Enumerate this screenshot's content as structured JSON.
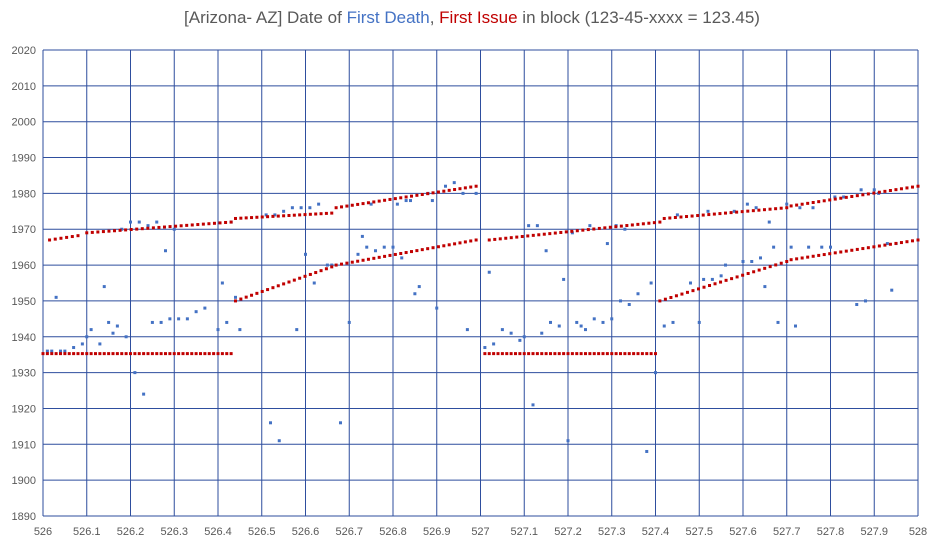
{
  "chart_data": {
    "type": "scatter",
    "title": {
      "part1": "[Arizona- AZ] Date of ",
      "part2": "First Death",
      "part3": ", ",
      "part4": "First Issue",
      "part5": " in block (123-45-xxxx = 123.45)"
    },
    "xlim": [
      526,
      528
    ],
    "ylim": [
      1890,
      2020
    ],
    "x_ticks": [
      "526",
      "526.1",
      "526.2",
      "526.3",
      "526.4",
      "526.5",
      "526.6",
      "526.7",
      "526.8",
      "526.9",
      "527",
      "527.1",
      "527.2",
      "527.3",
      "527.4",
      "527.5",
      "527.6",
      "527.7",
      "527.8",
      "527.9",
      "528"
    ],
    "y_ticks": [
      "1890",
      "1900",
      "1910",
      "1920",
      "1930",
      "1940",
      "1950",
      "1960",
      "1970",
      "1980",
      "1990",
      "2000",
      "2010",
      "2020"
    ],
    "grid": true,
    "legend": "none",
    "colors": {
      "first_death": "#4472C4",
      "first_issue": "#C00000",
      "grid": "#2E4E9E"
    },
    "series": [
      {
        "name": "First Death",
        "points": [
          [
            526.01,
            1936
          ],
          [
            526.02,
            1936
          ],
          [
            526.03,
            1951
          ],
          [
            526.04,
            1936
          ],
          [
            526.05,
            1936
          ],
          [
            526.07,
            1937
          ],
          [
            526.09,
            1938
          ],
          [
            526.1,
            1940
          ],
          [
            526.11,
            1942
          ],
          [
            526.13,
            1938
          ],
          [
            526.14,
            1954
          ],
          [
            526.15,
            1944
          ],
          [
            526.16,
            1941
          ],
          [
            526.17,
            1943
          ],
          [
            526.18,
            1970
          ],
          [
            526.19,
            1940
          ],
          [
            526.2,
            1972
          ],
          [
            526.21,
            1930
          ],
          [
            526.22,
            1972
          ],
          [
            526.23,
            1924
          ],
          [
            526.24,
            1971
          ],
          [
            526.25,
            1944
          ],
          [
            526.26,
            1972
          ],
          [
            526.27,
            1944
          ],
          [
            526.28,
            1964
          ],
          [
            526.29,
            1945
          ],
          [
            526.3,
            1970
          ],
          [
            526.31,
            1945
          ],
          [
            526.33,
            1945
          ],
          [
            526.35,
            1947
          ],
          [
            526.37,
            1948
          ],
          [
            526.4,
            1942
          ],
          [
            526.41,
            1955
          ],
          [
            526.42,
            1944
          ],
          [
            526.43,
            1972
          ],
          [
            526.44,
            1951
          ],
          [
            526.45,
            1942
          ],
          [
            526.51,
            1974
          ],
          [
            526.52,
            1916
          ],
          [
            526.53,
            1974
          ],
          [
            526.54,
            1911
          ],
          [
            526.55,
            1975
          ],
          [
            526.57,
            1976
          ],
          [
            526.58,
            1942
          ],
          [
            526.59,
            1976
          ],
          [
            526.6,
            1963
          ],
          [
            526.61,
            1976
          ],
          [
            526.62,
            1955
          ],
          [
            526.63,
            1977
          ],
          [
            526.65,
            1960
          ],
          [
            526.66,
            1960
          ],
          [
            526.68,
            1916
          ],
          [
            526.7,
            1944
          ],
          [
            526.72,
            1963
          ],
          [
            526.73,
            1968
          ],
          [
            526.74,
            1965
          ],
          [
            526.75,
            1977
          ],
          [
            526.76,
            1964
          ],
          [
            526.78,
            1965
          ],
          [
            526.8,
            1965
          ],
          [
            526.81,
            1977
          ],
          [
            526.82,
            1962
          ],
          [
            526.83,
            1978
          ],
          [
            526.84,
            1978
          ],
          [
            526.85,
            1952
          ],
          [
            526.86,
            1954
          ],
          [
            526.88,
            1980
          ],
          [
            526.89,
            1978
          ],
          [
            526.9,
            1948
          ],
          [
            526.92,
            1982
          ],
          [
            526.94,
            1983
          ],
          [
            526.96,
            1980
          ],
          [
            526.97,
            1942
          ],
          [
            526.99,
            1980
          ],
          [
            527.01,
            1937
          ],
          [
            527.02,
            1958
          ],
          [
            527.03,
            1938
          ],
          [
            527.05,
            1942
          ],
          [
            527.07,
            1941
          ],
          [
            527.09,
            1939
          ],
          [
            527.1,
            1940
          ],
          [
            527.11,
            1971
          ],
          [
            527.12,
            1921
          ],
          [
            527.13,
            1971
          ],
          [
            527.14,
            1941
          ],
          [
            527.15,
            1964
          ],
          [
            527.16,
            1944
          ],
          [
            527.18,
            1943
          ],
          [
            527.19,
            1956
          ],
          [
            527.2,
            1911
          ],
          [
            527.21,
            1969
          ],
          [
            527.22,
            1944
          ],
          [
            527.23,
            1943
          ],
          [
            527.24,
            1942
          ],
          [
            527.25,
            1971
          ],
          [
            527.26,
            1945
          ],
          [
            527.28,
            1944
          ],
          [
            527.29,
            1966
          ],
          [
            527.3,
            1945
          ],
          [
            527.31,
            1971
          ],
          [
            527.32,
            1950
          ],
          [
            527.33,
            1970
          ],
          [
            527.34,
            1949
          ],
          [
            527.36,
            1952
          ],
          [
            527.38,
            1908
          ],
          [
            527.39,
            1955
          ],
          [
            527.4,
            1930
          ],
          [
            527.42,
            1943
          ],
          [
            527.44,
            1944
          ],
          [
            527.45,
            1974
          ],
          [
            527.48,
            1955
          ],
          [
            527.5,
            1944
          ],
          [
            527.51,
            1956
          ],
          [
            527.52,
            1975
          ],
          [
            527.53,
            1956
          ],
          [
            527.55,
            1957
          ],
          [
            527.56,
            1960
          ],
          [
            527.58,
            1975
          ],
          [
            527.6,
            1961
          ],
          [
            527.61,
            1977
          ],
          [
            527.62,
            1961
          ],
          [
            527.63,
            1976
          ],
          [
            527.64,
            1962
          ],
          [
            527.65,
            1954
          ],
          [
            527.66,
            1972
          ],
          [
            527.67,
            1965
          ],
          [
            527.68,
            1944
          ],
          [
            527.7,
            1977
          ],
          [
            527.71,
            1965
          ],
          [
            527.72,
            1943
          ],
          [
            527.73,
            1976
          ],
          [
            527.75,
            1965
          ],
          [
            527.76,
            1976
          ],
          [
            527.78,
            1965
          ],
          [
            527.8,
            1965
          ],
          [
            527.81,
            1979
          ],
          [
            527.83,
            1979
          ],
          [
            527.86,
            1949
          ],
          [
            527.87,
            1981
          ],
          [
            527.88,
            1950
          ],
          [
            527.9,
            1981
          ],
          [
            527.91,
            1980
          ],
          [
            527.93,
            1966
          ],
          [
            527.94,
            1953
          ],
          [
            527.95,
            1966
          ]
        ]
      },
      {
        "name": "First Issue",
        "segments": [
          {
            "x0": 526.0,
            "x1": 526.43,
            "y0": 1935.3,
            "y1": 1935.3,
            "step": 0.01
          },
          {
            "x0": 526.015,
            "x1": 526.08,
            "y0": 1967.0,
            "y1": 1968.2,
            "step": 0.012
          },
          {
            "x0": 526.1,
            "x1": 526.43,
            "y0": 1969.0,
            "y1": 1972.0,
            "step": 0.0125
          },
          {
            "x0": 526.44,
            "x1": 526.66,
            "y0": 1973.0,
            "y1": 1974.5,
            "step": 0.0125
          },
          {
            "x0": 526.67,
            "x1": 526.99,
            "y0": 1976.0,
            "y1": 1982.0,
            "step": 0.0125
          },
          {
            "x0": 526.44,
            "x1": 526.66,
            "y0": 1950.0,
            "y1": 1959.5,
            "step": 0.0125
          },
          {
            "x0": 526.67,
            "x1": 526.99,
            "y0": 1960.0,
            "y1": 1967.0,
            "step": 0.0125
          },
          {
            "x0": 527.01,
            "x1": 527.4,
            "y0": 1935.3,
            "y1": 1935.3,
            "step": 0.01
          },
          {
            "x0": 527.02,
            "x1": 527.41,
            "y0": 1967.0,
            "y1": 1972.0,
            "step": 0.0125
          },
          {
            "x0": 527.42,
            "x1": 527.7,
            "y0": 1973.0,
            "y1": 1976.0,
            "step": 0.0125
          },
          {
            "x0": 527.71,
            "x1": 528.0,
            "y0": 1976.5,
            "y1": 1982.0,
            "step": 0.0125
          },
          {
            "x0": 527.41,
            "x1": 527.7,
            "y0": 1950.0,
            "y1": 1961.0,
            "step": 0.0125
          },
          {
            "x0": 527.71,
            "x1": 528.0,
            "y0": 1961.5,
            "y1": 1967.0,
            "step": 0.0125
          }
        ]
      }
    ]
  }
}
